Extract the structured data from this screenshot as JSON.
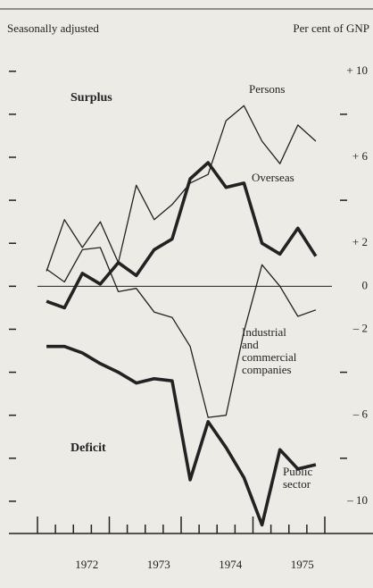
{
  "chart_data": {
    "type": "line",
    "left_title": "Seasonally adjusted",
    "right_title": "Per cent of GNP",
    "annotations": [
      "Surplus",
      "Deficit"
    ],
    "x": [
      1972.125,
      1972.375,
      1972.625,
      1972.875,
      1973.125,
      1973.375,
      1973.625,
      1973.875,
      1974.125,
      1974.375,
      1974.625,
      1974.875,
      1975.125,
      1975.375,
      1975.625,
      1975.875
    ],
    "xlim": [
      1972,
      1976
    ],
    "xticks": [
      {
        "value": 1972.5,
        "label": "1972"
      },
      {
        "value": 1973.5,
        "label": "1973"
      },
      {
        "value": 1974.5,
        "label": "1974"
      },
      {
        "value": 1975.5,
        "label": "1975"
      }
    ],
    "major_xticks": [
      1972,
      1973,
      1974,
      1975,
      1976
    ],
    "minor_xticks": [
      1972.25,
      1972.5,
      1972.75,
      1973.25,
      1973.5,
      1973.75,
      1974.25,
      1974.5,
      1974.75,
      1975.25,
      1975.5,
      1975.75
    ],
    "ylim": [
      -11.5,
      12.9
    ],
    "yticks": [
      {
        "value": 10,
        "label": "+ 10"
      },
      {
        "value": 6,
        "label": "+ 6"
      },
      {
        "value": 2,
        "label": "+ 2"
      },
      0,
      {
        "value": -2,
        "label": "– 2"
      },
      {
        "value": -6,
        "label": "– 6"
      },
      {
        "value": -10,
        "label": "– 10"
      }
    ],
    "minor_yticks": [
      8,
      4,
      -4,
      -8
    ],
    "zero_line": true,
    "series": [
      {
        "label": [
          "Persons"
        ],
        "color": "#222222",
        "style": "thin",
        "values": [
          0.7,
          3.1,
          1.8,
          3.0,
          1.1,
          4.7,
          3.1,
          3.8,
          4.8,
          5.2,
          7.7,
          8.4,
          6.75,
          5.7,
          7.5,
          6.75
        ]
      },
      {
        "label": [
          "Overseas"
        ],
        "color": "#222222",
        "style": "thick",
        "values": [
          -0.7,
          -1.0,
          0.6,
          0.1,
          1.1,
          0.5,
          1.7,
          2.2,
          5.0,
          5.75,
          4.6,
          4.8,
          2.0,
          1.5,
          2.7,
          1.4
        ]
      },
      {
        "label": [
          "Industrial",
          "and",
          "commercial",
          "companies"
        ],
        "color": "#222222",
        "style": "thin",
        "values": [
          0.8,
          0.2,
          1.7,
          1.8,
          -0.25,
          -0.1,
          -1.2,
          -1.45,
          -2.8,
          -6.1,
          -6.0,
          -2.1,
          1.0,
          0,
          -1.4,
          -1.1
        ]
      },
      {
        "label": [
          "Public",
          "sector"
        ],
        "color": "#222222",
        "style": "thick",
        "values": [
          -2.8,
          -2.8,
          -3.1,
          -3.6,
          -4.0,
          -4.5,
          -4.3,
          -4.4,
          -9.0,
          -6.3,
          -7.5,
          -8.9,
          -11.1,
          -7.6,
          -8.5,
          -8.3
        ]
      }
    ]
  }
}
